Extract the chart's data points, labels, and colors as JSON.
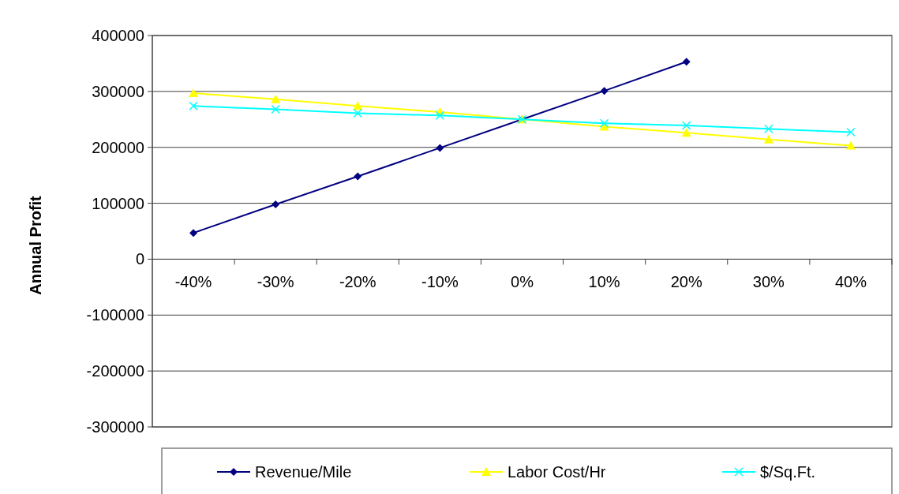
{
  "chart_data": {
    "type": "line",
    "ylabel": "Annual Profit",
    "categories": [
      "-40%",
      "-30%",
      "-20%",
      "-10%",
      "0%",
      "10%",
      "20%",
      "30%",
      "40%"
    ],
    "series": [
      {
        "name": "Revenue/Mile",
        "color": "#000080",
        "marker": "diamond",
        "values": [
          47000,
          98000,
          148000,
          199000,
          250000,
          301000,
          353000,
          null,
          null
        ]
      },
      {
        "name": "Labor Cost/Hr",
        "color": "#ffff00",
        "marker": "triangle",
        "values": [
          297000,
          286000,
          274000,
          263000,
          250000,
          237000,
          226000,
          214000,
          203000
        ]
      },
      {
        "name": "$/Sq.Ft.",
        "color": "#00ffff",
        "marker": "cross",
        "values": [
          274000,
          268000,
          261000,
          257000,
          250000,
          243000,
          239000,
          233000,
          227000
        ]
      }
    ],
    "ylim": [
      -300000,
      400000
    ],
    "yticks": [
      -300000,
      -200000,
      -100000,
      0,
      100000,
      200000,
      300000,
      400000
    ],
    "grid": "y",
    "legend": "bottom"
  }
}
